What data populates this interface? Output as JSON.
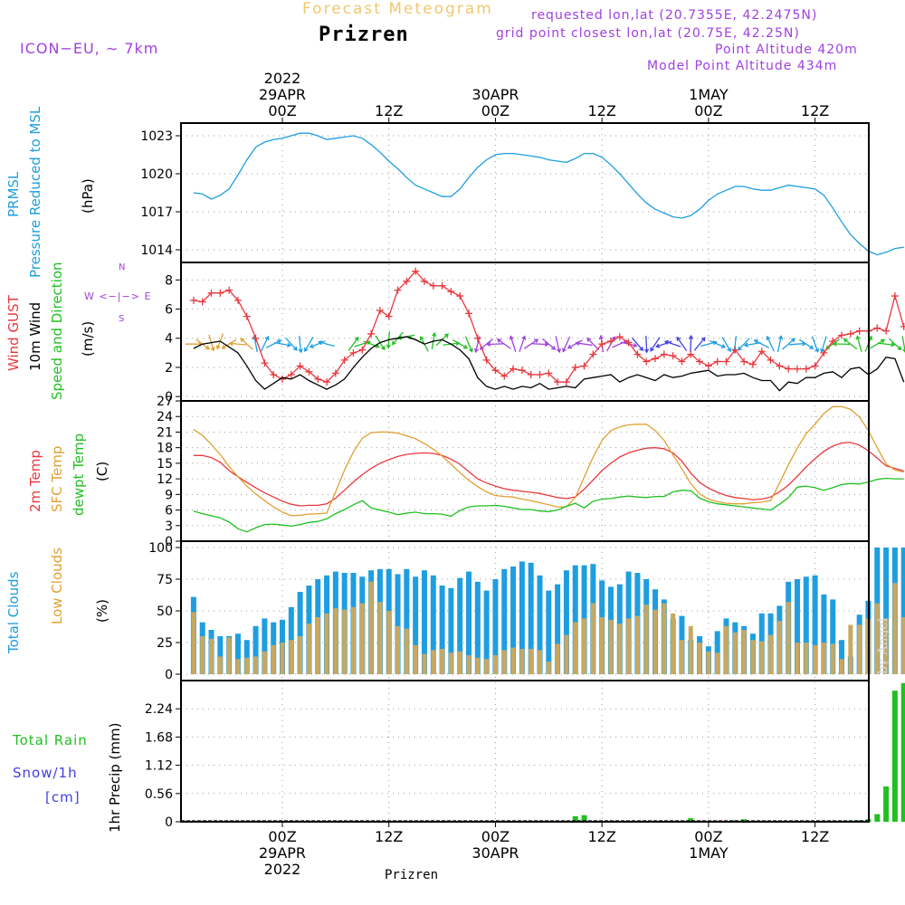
{
  "header": {
    "model": "ICON−EU,  ∼  7km",
    "subtitle": "Forecast Meteogram",
    "location": "Prizren",
    "requested": "requested lon,lat (20.7355E, 42.2475N)",
    "grid_point": "grid point closest lon,lat (20.75E, 42.25N)",
    "point_altitude": "Point Altitude 420m",
    "model_altitude": "Model Point Altitude 434m",
    "watermark": "by Angel"
  },
  "time_axis": {
    "top": [
      {
        "l1": "2022",
        "l2": "29APR",
        "l3": "00Z"
      },
      {
        "l1": "",
        "l2": "",
        "l3": "12Z"
      },
      {
        "l1": "",
        "l2": "30APR",
        "l3": "00Z"
      },
      {
        "l1": "",
        "l2": "",
        "l3": "12Z"
      },
      {
        "l1": "",
        "l2": "1MAY",
        "l3": "00Z"
      },
      {
        "l1": "",
        "l2": "",
        "l3": "12Z"
      }
    ],
    "bottom": [
      {
        "l1": "00Z",
        "l2": "29APR",
        "l3": "2022"
      },
      {
        "l1": "12Z",
        "l2": "",
        "l3": ""
      },
      {
        "l1": "00Z",
        "l2": "30APR",
        "l3": ""
      },
      {
        "l1": "12Z",
        "l2": "",
        "l3": ""
      },
      {
        "l1": "00Z",
        "l2": "1MAY",
        "l3": ""
      },
      {
        "l1": "12Z",
        "l2": "",
        "l3": ""
      }
    ],
    "footer": "Prizren"
  },
  "labels": {
    "prmsl": "PRMSL",
    "prmsl_desc": "Pressure Reduced to MSL",
    "hpa": "(hPa)",
    "wind_gust": "Wind GUST",
    "wind_10m": "10m Wind",
    "wind_speed_dir": "Speed and Direction",
    "ms": "(m/s)",
    "compass_n": "N",
    "compass_s": "S",
    "compass_we": "W <−|−> E",
    "temp_2m": "2m Temp",
    "temp_sfc": "SFC Temp",
    "temp_dewpt": "dewpt Temp",
    "temp_unit": "(C)",
    "total_clouds": "Total Clouds",
    "low_clouds": "Low Clouds",
    "pct": "(%)",
    "total_rain": "Total  Rain",
    "snow": "Snow/1h",
    "cm": "[cm]",
    "precip_unit": "1hr Precip (mm)"
  },
  "colors": {
    "pressure": "#1e9ee0",
    "gust": "#e8383e",
    "wind10m": "#000000",
    "temp2m": "#e8383e",
    "sfc": "#e0a030",
    "dewpt": "#20c020",
    "total_cloud": "#1e9ee0",
    "low_cloud": "#c8a860",
    "rain": "#20c020",
    "snow": "#4040e0",
    "violet": "#a040e0",
    "orange": "#e0a030"
  },
  "chart_data": {
    "type": "meteogram",
    "time_step_hours": 1,
    "time_start_hours_before_29APR00Z": 10,
    "panels": [
      {
        "id": "pressure",
        "type": "line",
        "ylabel": "(hPa)",
        "yticks": [
          1014,
          1017,
          1020,
          1023
        ],
        "ylim": [
          1013,
          1024
        ],
        "series": [
          {
            "name": "PRMSL",
            "values": [
              1018.5,
              1018.4,
              1018.0,
              1018.3,
              1018.8,
              1019.9,
              1021.1,
              1022.1,
              1022.5,
              1022.7,
              1022.8,
              1023.0,
              1023.2,
              1023.2,
              1023.0,
              1022.7,
              1022.8,
              1022.9,
              1023.0,
              1022.8,
              1022.3,
              1021.7,
              1021.0,
              1020.4,
              1019.7,
              1019.1,
              1018.8,
              1018.5,
              1018.2,
              1018.2,
              1018.8,
              1019.7,
              1020.5,
              1021.1,
              1021.5,
              1021.6,
              1021.6,
              1021.5,
              1021.4,
              1021.3,
              1021.1,
              1021.0,
              1020.9,
              1021.2,
              1021.6,
              1021.6,
              1021.3,
              1020.7,
              1020.0,
              1019.2,
              1018.4,
              1017.7,
              1017.2,
              1016.9,
              1016.6,
              1016.5,
              1016.7,
              1017.2,
              1017.9,
              1018.4,
              1018.7,
              1019.0,
              1019.0,
              1018.8,
              1018.7,
              1018.7,
              1018.9,
              1019.1,
              1019.0,
              1018.9,
              1018.8,
              1018.3,
              1017.3,
              1016.2,
              1015.2,
              1014.5,
              1013.9,
              1013.6,
              1013.8,
              1014.1,
              1014.2
            ]
          }
        ]
      },
      {
        "id": "wind",
        "type": "line",
        "ylabel": "(m/s)",
        "yticks": [
          0,
          2,
          4,
          6,
          8
        ],
        "ylim": [
          -0.3,
          9.2
        ],
        "series": [
          {
            "name": "Wind GUST",
            "values": [
              6.6,
              6.5,
              7.1,
              7.1,
              7.3,
              6.6,
              5.5,
              4.0,
              2.3,
              1.5,
              1.2,
              1.5,
              2.1,
              1.7,
              1.2,
              1.0,
              1.6,
              2.5,
              3.0,
              3.2,
              4.3,
              5.9,
              5.5,
              7.3,
              7.9,
              8.6,
              7.9,
              7.6,
              7.6,
              7.2,
              6.9,
              5.7,
              4.0,
              2.5,
              1.8,
              1.4,
              1.9,
              1.8,
              1.5,
              1.5,
              1.6,
              1.0,
              1.0,
              2.0,
              2.1,
              2.9,
              3.6,
              3.8,
              4.1,
              3.7,
              2.9,
              2.4,
              2.6,
              2.9,
              2.8,
              2.4,
              2.9,
              2.4,
              2.1,
              2.4,
              2.4,
              3.2,
              2.4,
              2.2,
              3.1,
              2.5,
              2.1,
              1.9,
              1.9,
              1.9,
              2.1,
              3.0,
              3.8,
              4.2,
              4.3,
              4.5,
              4.5,
              4.7,
              4.5,
              6.9,
              4.8
            ]
          },
          {
            "name": "10m Wind",
            "values": [
              3.3,
              3.6,
              3.7,
              3.8,
              3.4,
              3.0,
              2.1,
              1.1,
              0.5,
              0.9,
              1.3,
              1.2,
              1.5,
              1.1,
              0.8,
              0.5,
              0.8,
              1.2,
              2.0,
              2.7,
              3.3,
              3.7,
              3.9,
              4.0,
              4.1,
              3.9,
              3.6,
              3.8,
              3.9,
              3.6,
              3.2,
              2.6,
              1.3,
              0.7,
              0.5,
              0.7,
              0.5,
              0.7,
              0.6,
              0.9,
              0.5,
              0.6,
              0.7,
              0.6,
              1.2,
              1.3,
              1.4,
              1.5,
              1.0,
              1.3,
              1.5,
              1.3,
              1.1,
              1.5,
              1.3,
              1.4,
              1.6,
              1.7,
              1.8,
              1.4,
              1.5,
              1.5,
              1.6,
              1.3,
              1.1,
              1.1,
              0.4,
              1.0,
              0.9,
              1.3,
              1.3,
              1.6,
              1.7,
              1.3,
              1.9,
              2.0,
              1.5,
              1.9,
              2.7,
              2.6,
              1.0
            ]
          }
        ]
      },
      {
        "id": "temperature",
        "type": "line",
        "ylabel": "(C)",
        "yticks": [
          0,
          3,
          6,
          9,
          12,
          15,
          18,
          21,
          24,
          27
        ],
        "ylim": [
          0,
          27
        ],
        "series": [
          {
            "name": "2m Temp",
            "values": [
              16.5,
              16.5,
              16.1,
              15.2,
              13.6,
              12.4,
              11.3,
              10.3,
              9.3,
              8.5,
              7.7,
              7.1,
              6.8,
              6.9,
              6.9,
              7.2,
              8.3,
              9.8,
              11.4,
              12.8,
              14.0,
              15.0,
              15.7,
              16.3,
              16.7,
              16.9,
              17.0,
              16.9,
              16.5,
              15.8,
              14.8,
              13.4,
              12.0,
              11.2,
              10.6,
              10.1,
              9.8,
              9.6,
              9.4,
              9.2,
              8.8,
              8.4,
              8.2,
              8.5,
              10.0,
              11.8,
              13.6,
              15.0,
              16.2,
              17.0,
              17.5,
              17.9,
              18.0,
              17.8,
              17.0,
              15.4,
              13.1,
              11.3,
              10.2,
              9.4,
              8.8,
              8.4,
              8.2,
              8.0,
              8.1,
              8.5,
              9.5,
              10.8,
              12.5,
              14.3,
              15.9,
              17.3,
              18.3,
              18.9,
              19.0,
              18.5,
              17.4,
              16.0,
              14.5,
              14.0,
              13.5
            ]
          },
          {
            "name": "SFC Temp",
            "values": [
              21.5,
              20.4,
              18.6,
              16.7,
              14.4,
              12.4,
              10.6,
              9.1,
              7.8,
              6.6,
              5.6,
              4.9,
              5.0,
              5.2,
              5.3,
              5.4,
              9.5,
              13.7,
              17.2,
              19.8,
              20.9,
              21.0,
              21.0,
              20.8,
              20.3,
              19.7,
              18.8,
              17.7,
              16.4,
              14.8,
              13.2,
              11.7,
              10.5,
              9.5,
              8.8,
              8.6,
              8.5,
              8.1,
              7.8,
              7.4,
              7.0,
              6.6,
              6.6,
              8.4,
              12.3,
              16.2,
              19.4,
              21.3,
              22.0,
              22.4,
              22.5,
              22.5,
              21.3,
              19.4,
              16.6,
              13.9,
              11.1,
              9.1,
              8.1,
              7.6,
              7.3,
              7.2,
              7.2,
              7.4,
              7.5,
              7.8,
              11.2,
              14.7,
              17.9,
              20.7,
              22.5,
              24.6,
              25.9,
              25.9,
              25.4,
              23.9,
              21.3,
              18.0,
              14.9,
              13.7,
              13.3
            ]
          },
          {
            "name": "dewpt Temp",
            "values": [
              5.8,
              5.3,
              4.9,
              4.5,
              3.7,
              2.4,
              1.8,
              2.6,
              3.2,
              3.3,
              3.1,
              2.9,
              3.2,
              3.6,
              3.8,
              4.3,
              5.3,
              6.1,
              7.0,
              7.8,
              6.4,
              6.0,
              5.6,
              5.1,
              5.4,
              5.6,
              5.3,
              5.3,
              5.2,
              4.8,
              5.9,
              6.6,
              6.8,
              6.8,
              6.9,
              6.7,
              6.4,
              6.1,
              6.1,
              5.8,
              5.7,
              6.0,
              6.7,
              7.3,
              6.4,
              7.7,
              8.1,
              8.2,
              8.5,
              8.7,
              8.5,
              8.4,
              8.6,
              8.6,
              9.5,
              9.8,
              9.7,
              8.3,
              7.6,
              7.2,
              7.0,
              6.8,
              6.6,
              6.4,
              6.2,
              6.0,
              7.1,
              8.4,
              10.4,
              10.6,
              10.3,
              9.8,
              10.3,
              10.9,
              11.1,
              11.0,
              11.4,
              11.9,
              12.1,
              12.0,
              12.0
            ]
          }
        ]
      },
      {
        "id": "clouds",
        "type": "bar",
        "ylabel": "(%)",
        "yticks": [
          0,
          25,
          50,
          75,
          100
        ],
        "ylim": [
          -5,
          105
        ],
        "series": [
          {
            "name": "Total Clouds",
            "values": [
              61,
              41,
              35,
              30,
              30,
              32,
              27,
              38,
              44,
              41,
              43,
              53,
              65,
              70,
              75,
              78,
              81,
              80,
              80,
              77,
              82,
              83,
              83,
              79,
              83,
              77,
              82,
              78,
              70,
              68,
              76,
              81,
              73,
              66,
              75,
              83,
              85,
              89,
              88,
              78,
              66,
              71,
              82,
              86,
              86,
              87,
              74,
              69,
              71,
              81,
              80,
              75,
              67,
              59,
              44,
              46,
              27,
              30,
              22,
              34,
              44,
              41,
              38,
              32,
              48,
              48,
              54,
              73,
              75,
              77,
              78,
              63,
              59,
              27,
              14,
              47,
              58,
              100,
              100,
              100,
              100
            ]
          },
          {
            "name": "Low Clouds",
            "values": [
              49,
              30,
              28,
              14,
              29,
              12,
              13,
              14,
              18,
              23,
              25,
              27,
              30,
              40,
              45,
              48,
              52,
              51,
              53,
              56,
              73,
              57,
              50,
              38,
              36,
              23,
              16,
              19,
              20,
              17,
              18,
              15,
              13,
              12,
              15,
              19,
              21,
              20,
              20,
              19,
              10,
              24,
              31,
              41,
              44,
              56,
              45,
              43,
              40,
              44,
              46,
              55,
              51,
              56,
              48,
              27,
              38,
              25,
              18,
              17,
              38,
              33,
              35,
              27,
              26,
              31,
              42,
              57,
              25,
              25,
              23,
              25,
              24,
              12,
              39,
              39,
              44,
              56,
              44,
              72,
              45
            ]
          }
        ]
      },
      {
        "id": "precip",
        "type": "bar",
        "ylabel": "1hr Precip (mm)",
        "yticks": [
          0,
          0.56,
          1.12,
          1.68,
          2.24
        ],
        "ylim": [
          0,
          2.8
        ],
        "series": [
          {
            "name": "Total Rain",
            "values": [
              0,
              0,
              0,
              0,
              0,
              0,
              0,
              0,
              0,
              0,
              0,
              0,
              0,
              0,
              0,
              0,
              0,
              0,
              0,
              0,
              0,
              0,
              0,
              0,
              0,
              0,
              0,
              0,
              0,
              0,
              0,
              0,
              0,
              0,
              0,
              0,
              0,
              0,
              0,
              0,
              0,
              0,
              0.02,
              0.11,
              0.13,
              0,
              0,
              0,
              0,
              0,
              0,
              0,
              0,
              0,
              0,
              0,
              0.07,
              0,
              0,
              0,
              0,
              0.03,
              0.05,
              0,
              0,
              0,
              0,
              0,
              0,
              0,
              0,
              0,
              0,
              0,
              0,
              0.03,
              0.05,
              0.15,
              0.7,
              2.6,
              2.75
            ]
          }
        ]
      }
    ],
    "wind_arrows": [
      {
        "from": 0,
        "to": 6,
        "color": "#e0a030"
      },
      {
        "from": 7,
        "to": 15,
        "color": "#1e9ee0"
      },
      {
        "from": 18,
        "to": 31,
        "color": "#20c020"
      },
      {
        "from": 32,
        "to": 36,
        "color": "#a040e0"
      },
      {
        "from": 37,
        "to": 49,
        "color": "#a040e0"
      },
      {
        "from": 50,
        "to": 57,
        "color": "#4040e0"
      },
      {
        "from": 58,
        "to": 71,
        "color": "#1e9ee0"
      },
      {
        "from": 72,
        "to": 80,
        "color": "#20c020"
      }
    ]
  }
}
